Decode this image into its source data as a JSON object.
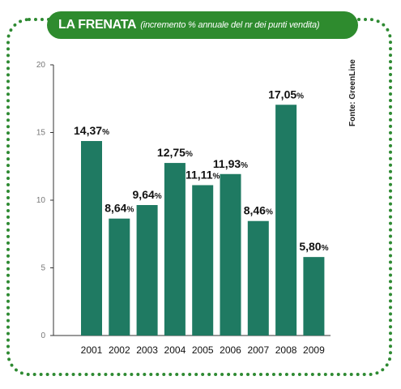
{
  "header": {
    "title": "LA FRENATA",
    "subtitle": "(incremento % annuale del nr dei punti vendita)"
  },
  "source": "Fonte: GreenLine",
  "colors": {
    "bar": "#1f7a62",
    "title_bg": "#2e8b2e",
    "frame": "#2e8a32"
  },
  "chart_data": {
    "type": "bar",
    "title": "LA FRENATA",
    "subtitle": "(incremento % annuale del nr dei punti vendita)",
    "categories": [
      "2001",
      "2002",
      "2003",
      "2004",
      "2005",
      "2006",
      "2007",
      "2008",
      "2009"
    ],
    "values": [
      14.37,
      8.64,
      9.64,
      12.75,
      11.11,
      11.93,
      8.46,
      17.05,
      5.8
    ],
    "value_labels": [
      "14,37",
      "8,64",
      "9,64",
      "12,75",
      "11,11",
      "11,93",
      "8,46",
      "17,05",
      "5,80"
    ],
    "value_suffix": "%",
    "yticks": [
      "0",
      "5",
      "10",
      "15",
      "20"
    ],
    "ylim": [
      0,
      20
    ],
    "xlabel": "",
    "ylabel": "",
    "grid": false,
    "legend": "none"
  }
}
